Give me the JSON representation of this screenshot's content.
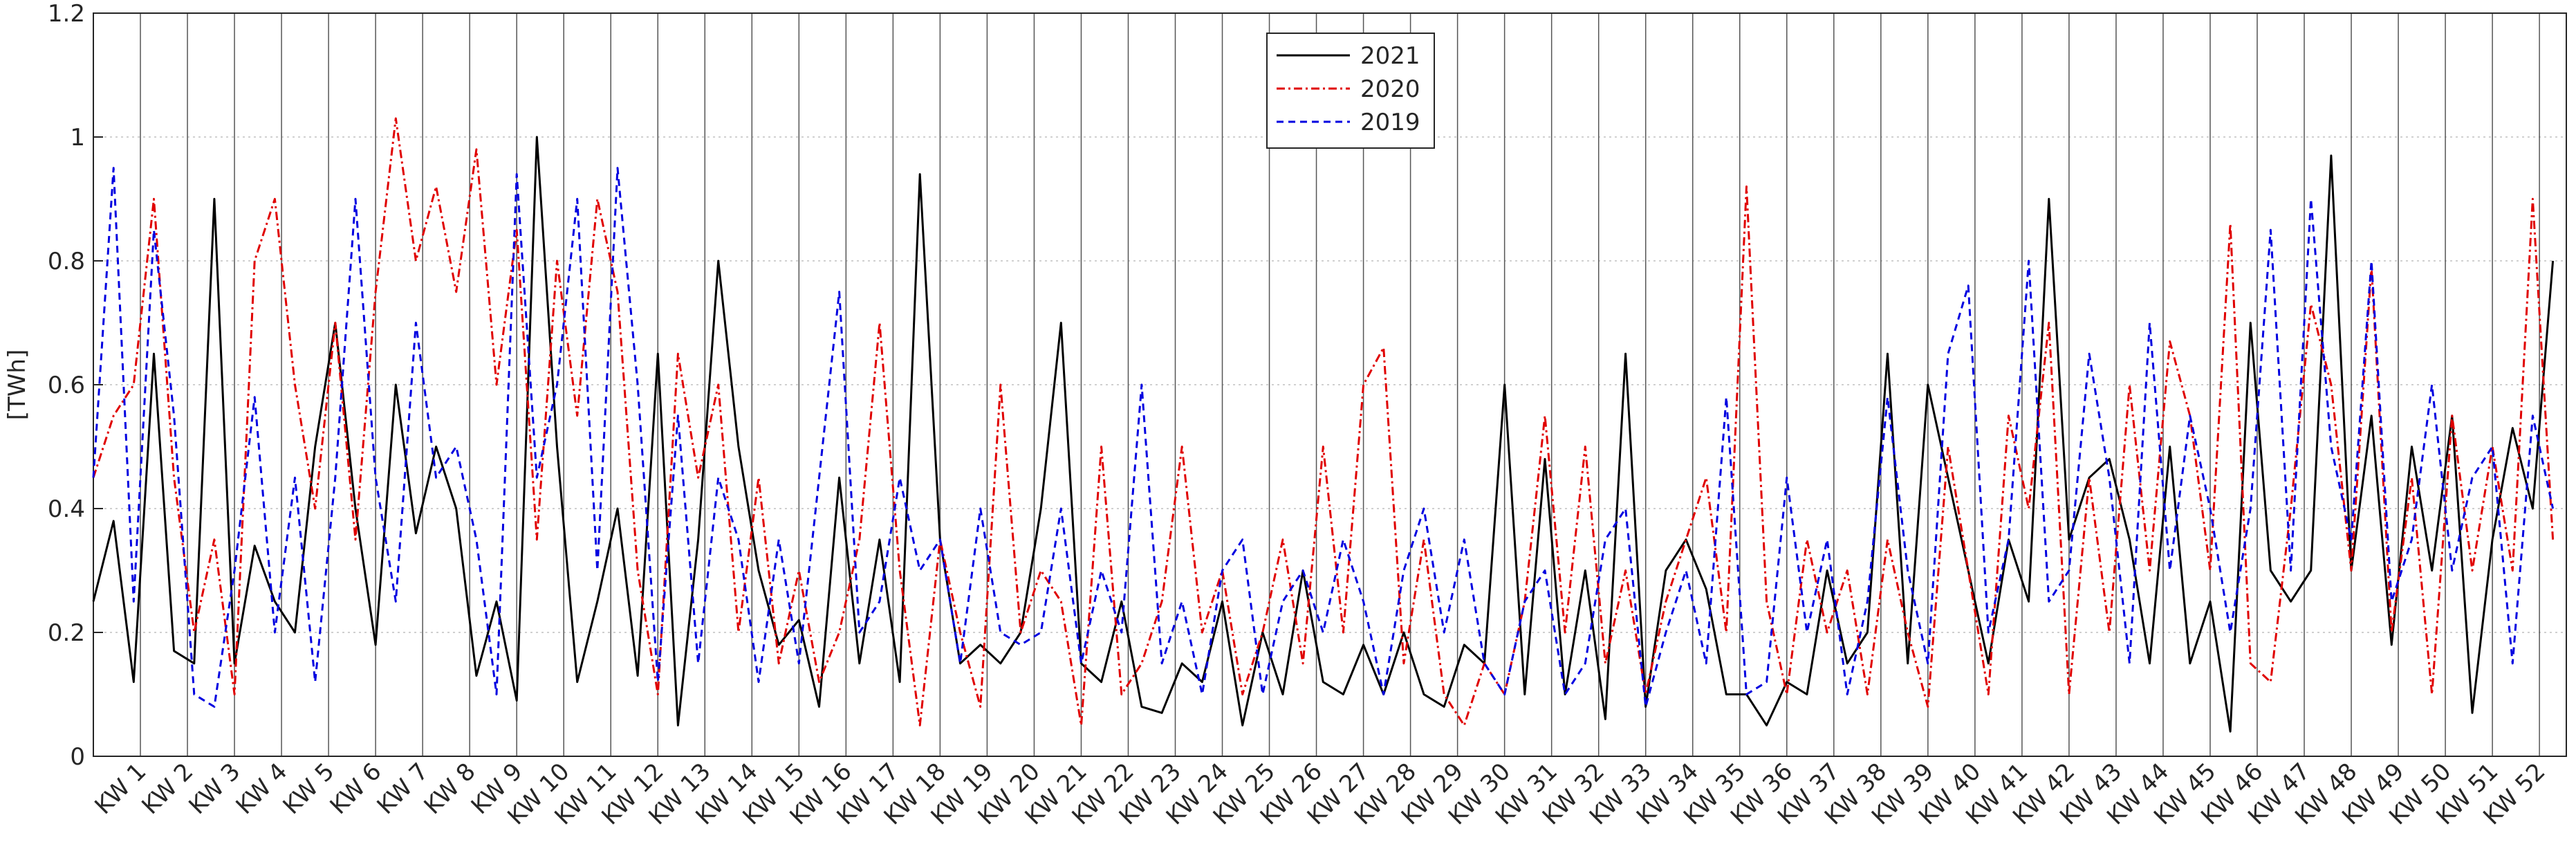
{
  "chart_data": {
    "type": "line",
    "ylabel": "[TWh]",
    "xlim": [
      0,
      368
    ],
    "ylim": [
      0,
      1.2
    ],
    "yticks": [
      0,
      0.2,
      0.4,
      0.6,
      0.8,
      1,
      1.2
    ],
    "xticks": [
      {
        "value": 7,
        "label": "KW 1"
      },
      {
        "value": 14,
        "label": "KW 2"
      },
      {
        "value": 21,
        "label": "KW 3"
      },
      {
        "value": 28,
        "label": "KW 4"
      },
      {
        "value": 35,
        "label": "KW 5"
      },
      {
        "value": 42,
        "label": "KW 6"
      },
      {
        "value": 49,
        "label": "KW 7"
      },
      {
        "value": 56,
        "label": "KW 8"
      },
      {
        "value": 63,
        "label": "KW 9"
      },
      {
        "value": 70,
        "label": "KW 10"
      },
      {
        "value": 77,
        "label": "KW 11"
      },
      {
        "value": 84,
        "label": "KW 12"
      },
      {
        "value": 91,
        "label": "KW 13"
      },
      {
        "value": 98,
        "label": "KW 14"
      },
      {
        "value": 105,
        "label": "KW 15"
      },
      {
        "value": 112,
        "label": "KW 16"
      },
      {
        "value": 119,
        "label": "KW 17"
      },
      {
        "value": 126,
        "label": "KW 18"
      },
      {
        "value": 133,
        "label": "KW 19"
      },
      {
        "value": 140,
        "label": "KW 20"
      },
      {
        "value": 147,
        "label": "KW 21"
      },
      {
        "value": 154,
        "label": "KW 22"
      },
      {
        "value": 161,
        "label": "KW 23"
      },
      {
        "value": 168,
        "label": "KW 24"
      },
      {
        "value": 175,
        "label": "KW 25"
      },
      {
        "value": 182,
        "label": "KW 26"
      },
      {
        "value": 189,
        "label": "KW 27"
      },
      {
        "value": 196,
        "label": "KW 28"
      },
      {
        "value": 203,
        "label": "KW 29"
      },
      {
        "value": 210,
        "label": "KW 30"
      },
      {
        "value": 217,
        "label": "KW 31"
      },
      {
        "value": 224,
        "label": "KW 32"
      },
      {
        "value": 231,
        "label": "KW 33"
      },
      {
        "value": 238,
        "label": "KW 34"
      },
      {
        "value": 245,
        "label": "KW 35"
      },
      {
        "value": 252,
        "label": "KW 36"
      },
      {
        "value": 259,
        "label": "KW 37"
      },
      {
        "value": 266,
        "label": "KW 38"
      },
      {
        "value": 273,
        "label": "KW 39"
      },
      {
        "value": 280,
        "label": "KW 40"
      },
      {
        "value": 287,
        "label": "KW 41"
      },
      {
        "value": 294,
        "label": "KW 42"
      },
      {
        "value": 301,
        "label": "KW 43"
      },
      {
        "value": 308,
        "label": "KW 44"
      },
      {
        "value": 315,
        "label": "KW 45"
      },
      {
        "value": 322,
        "label": "KW 46"
      },
      {
        "value": 329,
        "label": "KW 47"
      },
      {
        "value": 336,
        "label": "KW 48"
      },
      {
        "value": 343,
        "label": "KW 49"
      },
      {
        "value": 350,
        "label": "KW 50"
      },
      {
        "value": 357,
        "label": "KW 51"
      },
      {
        "value": 364,
        "label": "KW 52"
      }
    ],
    "grid": true,
    "legend": "top",
    "x": [
      0,
      3,
      6,
      9,
      12,
      15,
      18,
      21,
      24,
      27,
      30,
      33,
      36,
      39,
      42,
      45,
      48,
      51,
      54,
      57,
      60,
      63,
      66,
      69,
      72,
      75,
      78,
      81,
      84,
      87,
      90,
      93,
      96,
      99,
      102,
      105,
      108,
      111,
      114,
      117,
      120,
      123,
      126,
      129,
      132,
      135,
      138,
      141,
      144,
      147,
      150,
      153,
      156,
      159,
      162,
      165,
      168,
      171,
      174,
      177,
      180,
      183,
      186,
      189,
      192,
      195,
      198,
      201,
      204,
      207,
      210,
      213,
      216,
      219,
      222,
      225,
      228,
      231,
      234,
      237,
      240,
      243,
      246,
      249,
      252,
      255,
      258,
      261,
      264,
      267,
      270,
      273,
      276,
      279,
      282,
      285,
      288,
      291,
      294,
      297,
      300,
      303,
      306,
      309,
      312,
      315,
      318,
      321,
      324,
      327,
      330,
      333,
      336,
      339,
      342,
      345,
      348,
      351,
      354,
      357,
      360,
      363,
      366
    ],
    "series": [
      {
        "name": "2021",
        "color": "#000000",
        "dash": "none",
        "values": [
          0.25,
          0.38,
          0.12,
          0.65,
          0.17,
          0.15,
          0.9,
          0.15,
          0.34,
          0.25,
          0.2,
          0.5,
          0.7,
          0.4,
          0.18,
          0.6,
          0.36,
          0.5,
          0.4,
          0.13,
          0.25,
          0.09,
          1.0,
          0.5,
          0.12,
          0.25,
          0.4,
          0.13,
          0.65,
          0.05,
          0.35,
          0.8,
          0.5,
          0.3,
          0.18,
          0.22,
          0.08,
          0.45,
          0.15,
          0.35,
          0.12,
          0.94,
          0.35,
          0.15,
          0.18,
          0.15,
          0.2,
          0.4,
          0.7,
          0.15,
          0.12,
          0.25,
          0.08,
          0.07,
          0.15,
          0.12,
          0.25,
          0.05,
          0.2,
          0.1,
          0.3,
          0.12,
          0.1,
          0.18,
          0.1,
          0.2,
          0.1,
          0.08,
          0.18,
          0.15,
          0.6,
          0.1,
          0.48,
          0.1,
          0.3,
          0.06,
          0.65,
          0.08,
          0.3,
          0.35,
          0.27,
          0.1,
          0.1,
          0.05,
          0.12,
          0.1,
          0.3,
          0.15,
          0.2,
          0.65,
          0.15,
          0.6,
          0.45,
          0.3,
          0.15,
          0.35,
          0.25,
          0.9,
          0.35,
          0.45,
          0.48,
          0.35,
          0.15,
          0.5,
          0.15,
          0.25,
          0.04,
          0.7,
          0.3,
          0.25,
          0.3,
          0.97,
          0.3,
          0.55,
          0.18,
          0.5,
          0.3,
          0.55,
          0.07,
          0.35,
          0.53,
          0.4,
          0.8
        ]
      },
      {
        "name": "2020",
        "color": "#e00000",
        "dash": "12 5 3 5",
        "values": [
          0.45,
          0.55,
          0.6,
          0.9,
          0.45,
          0.2,
          0.35,
          0.1,
          0.8,
          0.9,
          0.6,
          0.4,
          0.7,
          0.35,
          0.75,
          1.03,
          0.8,
          0.92,
          0.75,
          0.98,
          0.6,
          0.85,
          0.35,
          0.8,
          0.55,
          0.9,
          0.75,
          0.3,
          0.1,
          0.65,
          0.45,
          0.6,
          0.2,
          0.45,
          0.15,
          0.3,
          0.12,
          0.2,
          0.35,
          0.7,
          0.3,
          0.05,
          0.35,
          0.2,
          0.08,
          0.6,
          0.2,
          0.3,
          0.25,
          0.05,
          0.5,
          0.1,
          0.15,
          0.25,
          0.5,
          0.2,
          0.3,
          0.1,
          0.2,
          0.35,
          0.15,
          0.5,
          0.2,
          0.6,
          0.66,
          0.15,
          0.35,
          0.1,
          0.05,
          0.15,
          0.1,
          0.25,
          0.55,
          0.2,
          0.5,
          0.15,
          0.3,
          0.1,
          0.25,
          0.35,
          0.45,
          0.2,
          0.92,
          0.25,
          0.1,
          0.35,
          0.2,
          0.3,
          0.1,
          0.35,
          0.2,
          0.08,
          0.5,
          0.3,
          0.1,
          0.55,
          0.4,
          0.7,
          0.1,
          0.45,
          0.2,
          0.6,
          0.3,
          0.67,
          0.55,
          0.3,
          0.86,
          0.15,
          0.12,
          0.4,
          0.73,
          0.6,
          0.3,
          0.79,
          0.2,
          0.45,
          0.1,
          0.55,
          0.3,
          0.5,
          0.3,
          0.9,
          0.35
        ]
      },
      {
        "name": "2019",
        "color": "#0000e0",
        "dash": "10 7",
        "values": [
          0.45,
          0.95,
          0.25,
          0.85,
          0.55,
          0.1,
          0.08,
          0.3,
          0.58,
          0.2,
          0.45,
          0.12,
          0.45,
          0.9,
          0.45,
          0.25,
          0.7,
          0.45,
          0.5,
          0.35,
          0.1,
          0.94,
          0.45,
          0.6,
          0.9,
          0.3,
          0.95,
          0.6,
          0.12,
          0.55,
          0.15,
          0.45,
          0.35,
          0.12,
          0.35,
          0.15,
          0.45,
          0.75,
          0.2,
          0.25,
          0.45,
          0.3,
          0.35,
          0.15,
          0.4,
          0.2,
          0.18,
          0.2,
          0.4,
          0.15,
          0.3,
          0.2,
          0.6,
          0.15,
          0.25,
          0.1,
          0.3,
          0.35,
          0.1,
          0.25,
          0.3,
          0.2,
          0.35,
          0.25,
          0.1,
          0.3,
          0.4,
          0.2,
          0.35,
          0.15,
          0.1,
          0.25,
          0.3,
          0.1,
          0.15,
          0.35,
          0.4,
          0.08,
          0.2,
          0.3,
          0.15,
          0.58,
          0.1,
          0.12,
          0.45,
          0.2,
          0.35,
          0.1,
          0.25,
          0.58,
          0.3,
          0.15,
          0.65,
          0.76,
          0.2,
          0.35,
          0.8,
          0.25,
          0.3,
          0.65,
          0.45,
          0.15,
          0.7,
          0.3,
          0.55,
          0.4,
          0.2,
          0.4,
          0.85,
          0.3,
          0.9,
          0.5,
          0.35,
          0.8,
          0.25,
          0.35,
          0.6,
          0.3,
          0.45,
          0.5,
          0.15,
          0.55,
          0.4
        ]
      }
    ]
  }
}
